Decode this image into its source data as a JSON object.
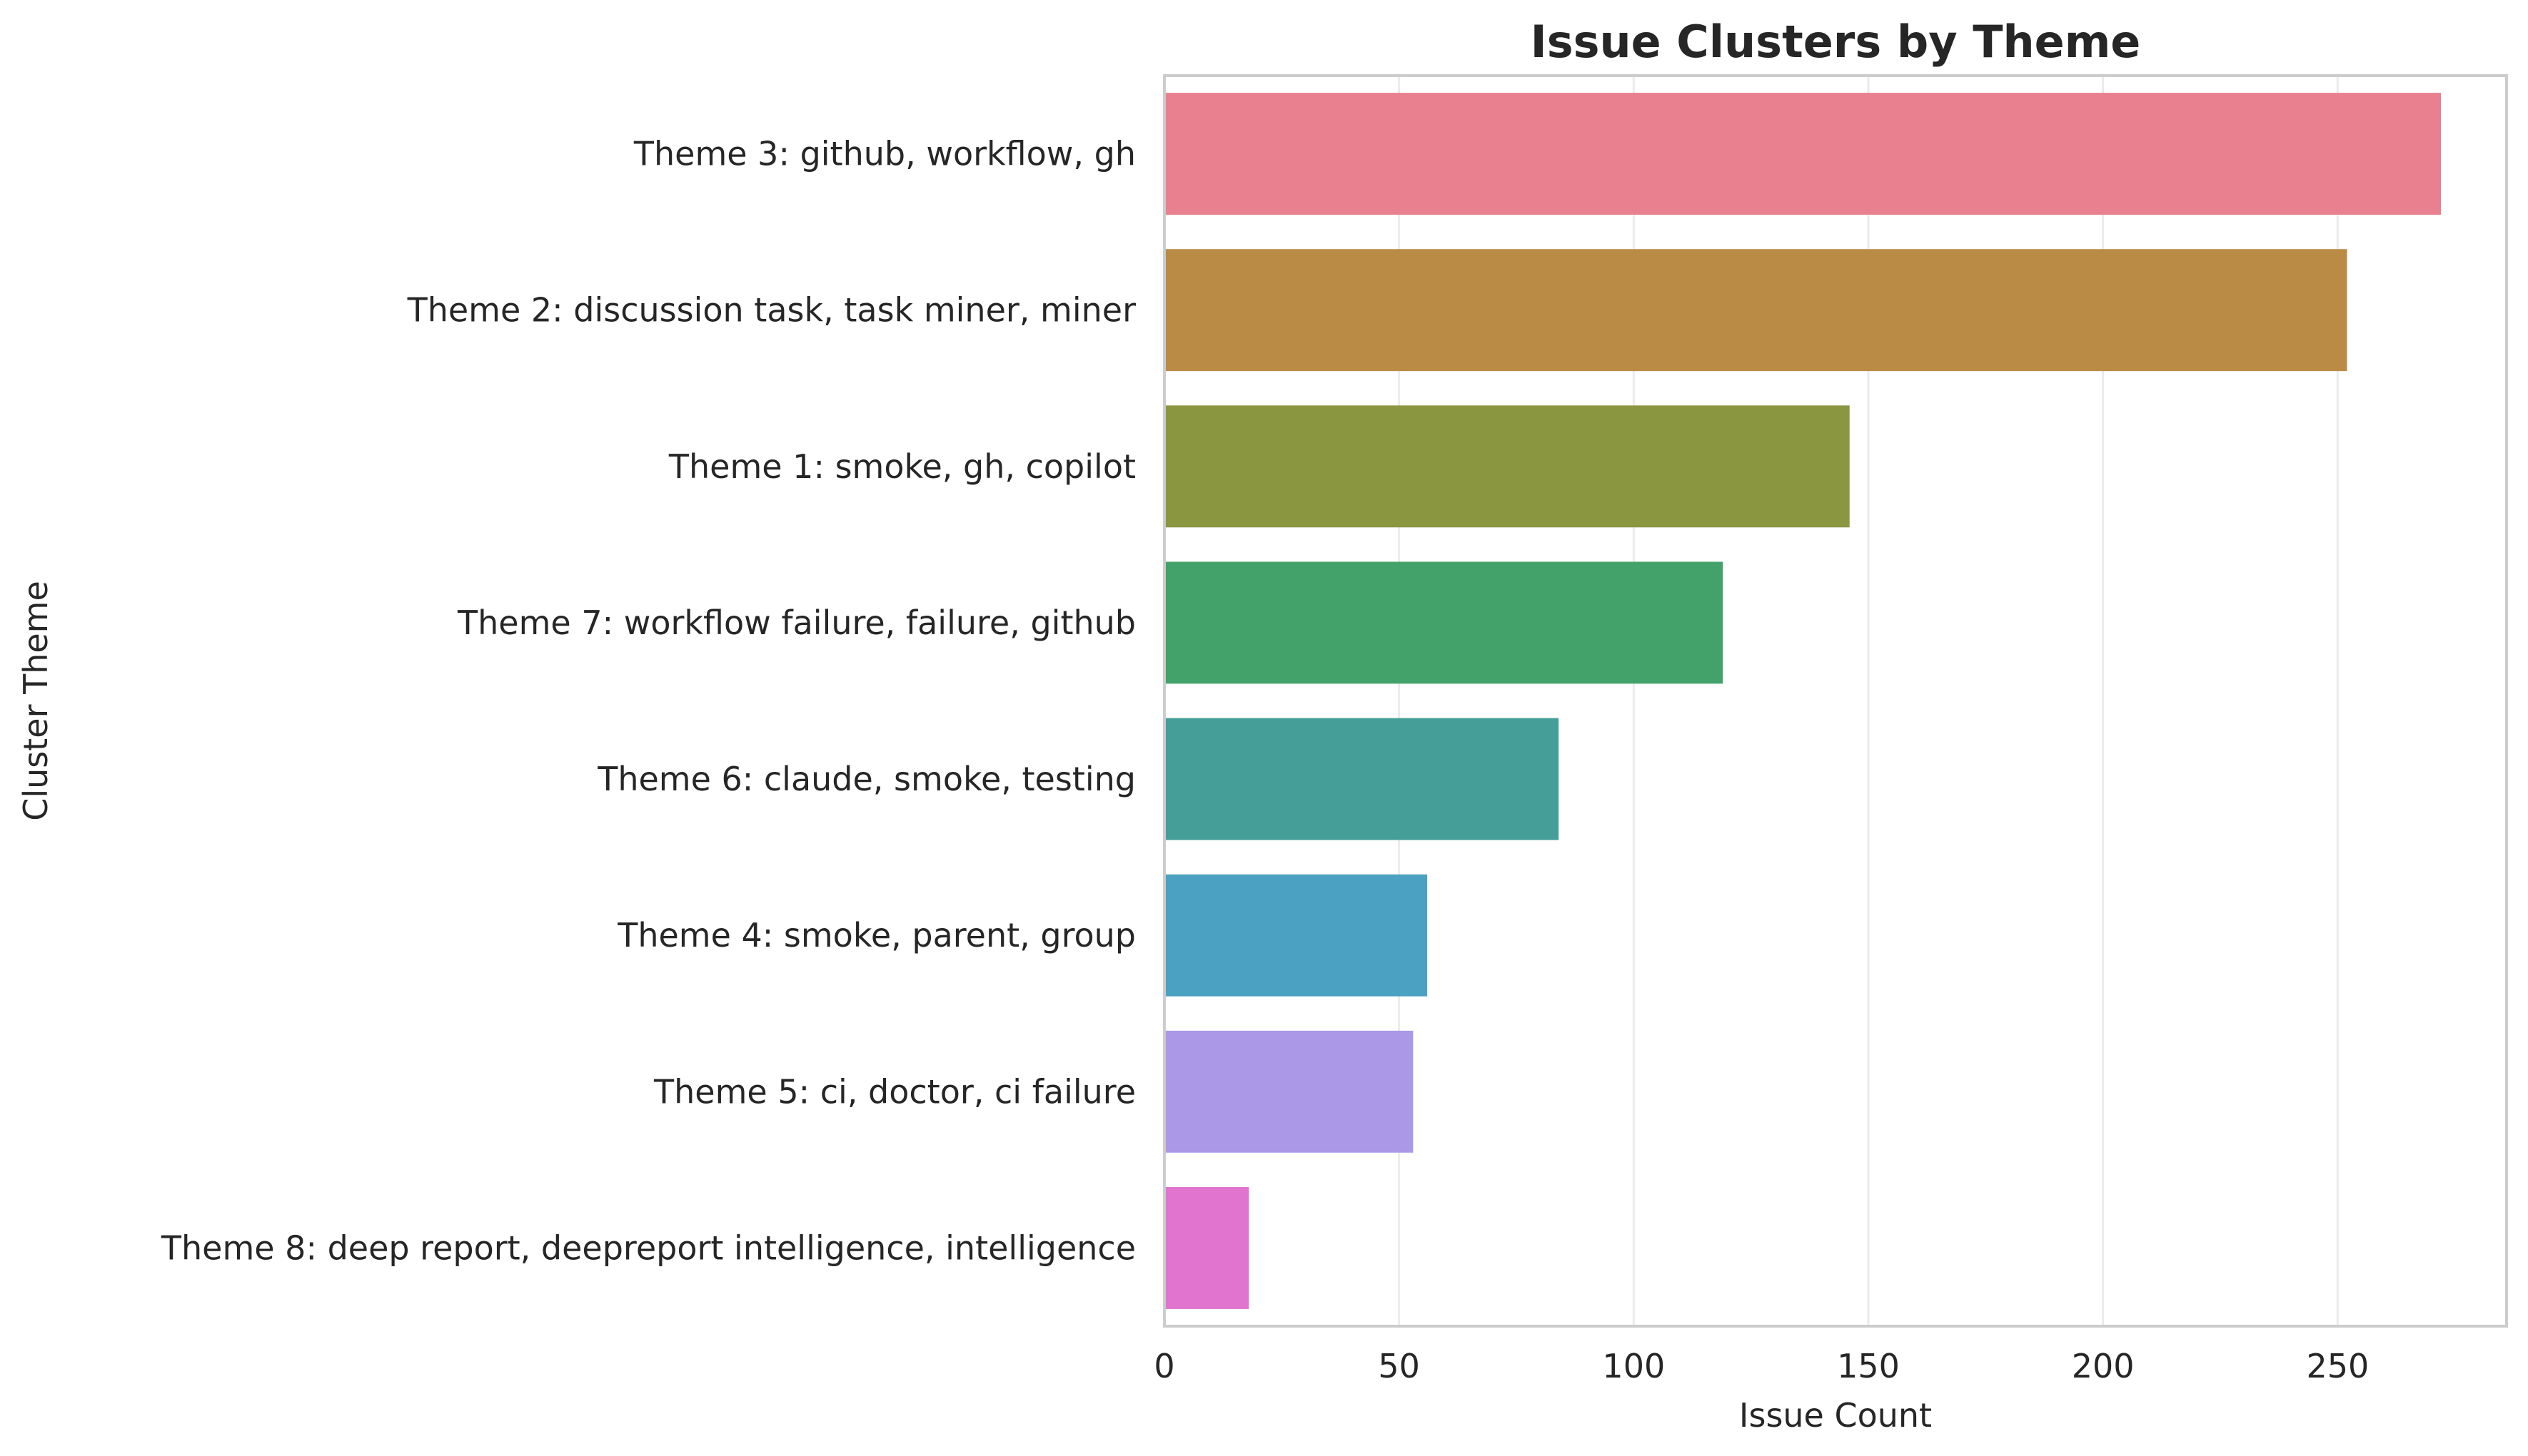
{
  "chart_data": {
    "type": "bar",
    "orientation": "horizontal",
    "title": "Issue Clusters by Theme",
    "xlabel": "Issue Count",
    "ylabel": "Cluster Theme",
    "xlim": [
      0,
      286
    ],
    "xticks": [
      0,
      50,
      100,
      150,
      200,
      250
    ],
    "grid": true,
    "categories": [
      "Theme 3: github, workflow, gh",
      "Theme 2: discussion task, task miner, miner",
      "Theme 1: smoke, gh, copilot",
      "Theme 7: workflow failure, failure, github",
      "Theme 6: claude, smoke, testing",
      "Theme 4: smoke, parent, group",
      "Theme 5: ci, doctor, ci failure",
      "Theme 8: deep report, deepreport intelligence, intelligence"
    ],
    "values": [
      272,
      252,
      146,
      119,
      84,
      56,
      53,
      18
    ],
    "colors": [
      "#e8808f",
      "#b98b45",
      "#8b9641",
      "#43a269",
      "#459e98",
      "#4ba1c2",
      "#ab98e6",
      "#e074cf"
    ]
  },
  "theme": {
    "grid_color": "#ebebeb",
    "spine_color": "#cccccc",
    "text_color": "#262626"
  }
}
